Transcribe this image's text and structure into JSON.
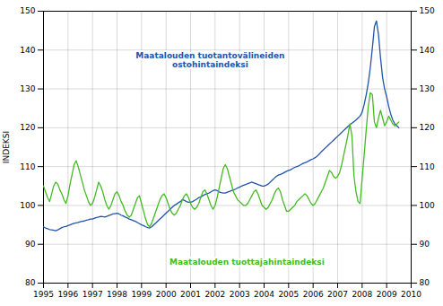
{
  "chart_data": {
    "type": "line",
    "ylabel": "INDEKSI",
    "x": [
      1995.0,
      1995.0833,
      1995.1667,
      1995.25,
      1995.3333,
      1995.4167,
      1995.5,
      1995.5833,
      1995.6667,
      1995.75,
      1995.8333,
      1995.9167,
      1996.0,
      1996.0833,
      1996.1667,
      1996.25,
      1996.3333,
      1996.4167,
      1996.5,
      1996.5833,
      1996.6667,
      1996.75,
      1996.8333,
      1996.9167,
      1997.0,
      1997.0833,
      1997.1667,
      1997.25,
      1997.3333,
      1997.4167,
      1997.5,
      1997.5833,
      1997.6667,
      1997.75,
      1997.8333,
      1997.9167,
      1998.0,
      1998.0833,
      1998.1667,
      1998.25,
      1998.3333,
      1998.4167,
      1998.5,
      1998.5833,
      1998.6667,
      1998.75,
      1998.8333,
      1998.9167,
      1999.0,
      1999.0833,
      1999.1667,
      1999.25,
      1999.3333,
      1999.4167,
      1999.5,
      1999.5833,
      1999.6667,
      1999.75,
      1999.8333,
      1999.9167,
      2000.0,
      2000.0833,
      2000.1667,
      2000.25,
      2000.3333,
      2000.4167,
      2000.5,
      2000.5833,
      2000.6667,
      2000.75,
      2000.8333,
      2000.9167,
      2001.0,
      2001.0833,
      2001.1667,
      2001.25,
      2001.3333,
      2001.4167,
      2001.5,
      2001.5833,
      2001.6667,
      2001.75,
      2001.8333,
      2001.9167,
      2002.0,
      2002.0833,
      2002.1667,
      2002.25,
      2002.3333,
      2002.4167,
      2002.5,
      2002.5833,
      2002.6667,
      2002.75,
      2002.8333,
      2002.9167,
      2003.0,
      2003.0833,
      2003.1667,
      2003.25,
      2003.3333,
      2003.4167,
      2003.5,
      2003.5833,
      2003.6667,
      2003.75,
      2003.8333,
      2003.9167,
      2004.0,
      2004.0833,
      2004.1667,
      2004.25,
      2004.3333,
      2004.4167,
      2004.5,
      2004.5833,
      2004.6667,
      2004.75,
      2004.8333,
      2004.9167,
      2005.0,
      2005.0833,
      2005.1667,
      2005.25,
      2005.3333,
      2005.4167,
      2005.5,
      2005.5833,
      2005.6667,
      2005.75,
      2005.8333,
      2005.9167,
      2006.0,
      2006.0833,
      2006.1667,
      2006.25,
      2006.3333,
      2006.4167,
      2006.5,
      2006.5833,
      2006.6667,
      2006.75,
      2006.8333,
      2006.9167,
      2007.0,
      2007.0833,
      2007.1667,
      2007.25,
      2007.3333,
      2007.4167,
      2007.5,
      2007.5833,
      2007.6667,
      2007.75,
      2007.8333,
      2007.9167,
      2008.0,
      2008.0833,
      2008.1667,
      2008.25,
      2008.3333,
      2008.4167,
      2008.5,
      2008.5833,
      2008.6667,
      2008.75,
      2008.8333,
      2008.9167,
      2009.0,
      2009.0833,
      2009.1667,
      2009.25,
      2009.3333,
      2009.4167,
      2009.5
    ],
    "series": [
      {
        "color": "#2255aa",
        "values": [
          94.5,
          94.2,
          94.0,
          93.8,
          93.7,
          93.6,
          93.5,
          93.7,
          94.0,
          94.3,
          94.5,
          94.6,
          94.8,
          95.0,
          95.2,
          95.4,
          95.5,
          95.6,
          95.8,
          95.9,
          96.0,
          96.2,
          96.3,
          96.5,
          96.5,
          96.7,
          96.9,
          97.0,
          97.2,
          97.1,
          97.0,
          97.2,
          97.4,
          97.6,
          97.8,
          97.9,
          98.0,
          97.8,
          97.5,
          97.3,
          97.0,
          96.8,
          96.5,
          96.3,
          96.1,
          95.9,
          95.6,
          95.3,
          95.0,
          94.8,
          94.5,
          94.3,
          94.2,
          94.5,
          95.0,
          95.5,
          96.0,
          96.5,
          97.0,
          97.5,
          98.0,
          98.5,
          99.0,
          99.5,
          100.0,
          100.3,
          100.7,
          101.0,
          101.5,
          101.3,
          101.0,
          100.8,
          100.8,
          101.0,
          101.3,
          101.6,
          102.0,
          102.2,
          102.5,
          102.8,
          103.0,
          103.2,
          103.5,
          103.8,
          104.0,
          103.8,
          103.5,
          103.3,
          103.2,
          103.2,
          103.4,
          103.6,
          103.8,
          104.0,
          104.2,
          104.5,
          104.7,
          105.0,
          105.2,
          105.4,
          105.6,
          105.8,
          106.0,
          105.8,
          105.6,
          105.4,
          105.2,
          105.0,
          105.0,
          105.2,
          105.5,
          106.0,
          106.5,
          107.0,
          107.5,
          107.8,
          108.0,
          108.2,
          108.5,
          108.8,
          109.0,
          109.2,
          109.5,
          109.8,
          110.0,
          110.2,
          110.5,
          110.8,
          111.0,
          111.2,
          111.5,
          111.8,
          112.0,
          112.3,
          112.7,
          113.2,
          113.8,
          114.3,
          114.8,
          115.3,
          115.8,
          116.3,
          116.8,
          117.3,
          117.8,
          118.3,
          118.8,
          119.3,
          119.8,
          120.3,
          120.8,
          121.2,
          121.6,
          122.0,
          122.5,
          123.0,
          124.0,
          126.0,
          128.5,
          131.5,
          135.5,
          140.5,
          146.0,
          147.5,
          144.0,
          138.0,
          133.0,
          130.0,
          128.0,
          125.5,
          123.5,
          122.0,
          121.0,
          120.5,
          120.0
        ]
      },
      {
        "color": "#44bb22",
        "values": [
          105.0,
          103.5,
          102.0,
          101.0,
          103.0,
          105.0,
          106.0,
          105.5,
          104.0,
          103.0,
          101.5,
          100.5,
          102.5,
          105.5,
          108.0,
          110.5,
          111.5,
          110.0,
          108.0,
          106.0,
          104.0,
          102.5,
          101.0,
          100.0,
          100.5,
          102.0,
          104.0,
          106.0,
          105.0,
          103.5,
          101.5,
          100.0,
          99.0,
          100.0,
          101.5,
          103.0,
          103.5,
          102.5,
          101.0,
          100.0,
          98.5,
          97.5,
          97.0,
          97.5,
          99.0,
          100.5,
          102.0,
          102.5,
          100.5,
          98.5,
          96.5,
          95.0,
          94.5,
          95.5,
          97.0,
          98.5,
          100.0,
          101.5,
          102.5,
          103.0,
          102.0,
          100.5,
          99.0,
          98.0,
          97.5,
          98.0,
          99.0,
          100.0,
          101.5,
          102.5,
          103.0,
          102.0,
          100.5,
          99.5,
          99.0,
          99.5,
          100.5,
          102.0,
          103.5,
          104.0,
          103.0,
          101.5,
          100.0,
          99.0,
          100.0,
          102.0,
          104.5,
          107.0,
          109.5,
          110.5,
          109.5,
          107.5,
          105.5,
          103.5,
          102.5,
          101.5,
          101.0,
          100.5,
          100.0,
          100.0,
          100.5,
          101.5,
          102.5,
          103.5,
          104.0,
          103.0,
          101.5,
          100.0,
          99.5,
          99.0,
          99.5,
          100.5,
          101.5,
          103.0,
          104.0,
          104.5,
          103.5,
          101.5,
          100.0,
          98.5,
          98.5,
          99.0,
          99.5,
          100.0,
          101.0,
          101.5,
          102.0,
          102.5,
          103.0,
          102.5,
          101.5,
          100.5,
          100.0,
          100.5,
          101.5,
          102.5,
          103.5,
          104.5,
          106.0,
          107.5,
          109.0,
          108.5,
          107.5,
          107.0,
          107.5,
          108.5,
          110.5,
          113.0,
          115.5,
          118.0,
          121.0,
          118.0,
          107.5,
          103.5,
          101.0,
          100.5,
          107.0,
          113.0,
          119.5,
          125.5,
          129.0,
          128.5,
          121.5,
          120.0,
          122.5,
          124.5,
          122.5,
          120.5,
          121.5,
          123.0,
          122.0,
          121.0,
          120.5,
          121.0,
          121.5
        ]
      }
    ],
    "annotations": [
      {
        "text": "Maatalouden tuotantovälineiden\nostohintaindeksi",
        "x": 2001.8,
        "y": 137.5,
        "color": "#2255aa"
      },
      {
        "text": "Maatalouden tuottajahintaindeksi",
        "x": 2003.3,
        "y": 85.5,
        "color": "#44bb22"
      }
    ],
    "xlim": [
      1995,
      2010
    ],
    "xticks": [
      1995,
      1996,
      1997,
      1998,
      1999,
      2000,
      2001,
      2002,
      2003,
      2004,
      2005,
      2006,
      2007,
      2008,
      2009,
      2010
    ],
    "ylim": [
      80,
      150
    ],
    "yticks": [
      80,
      90,
      100,
      110,
      120,
      130,
      140,
      150
    ],
    "grid": true
  }
}
